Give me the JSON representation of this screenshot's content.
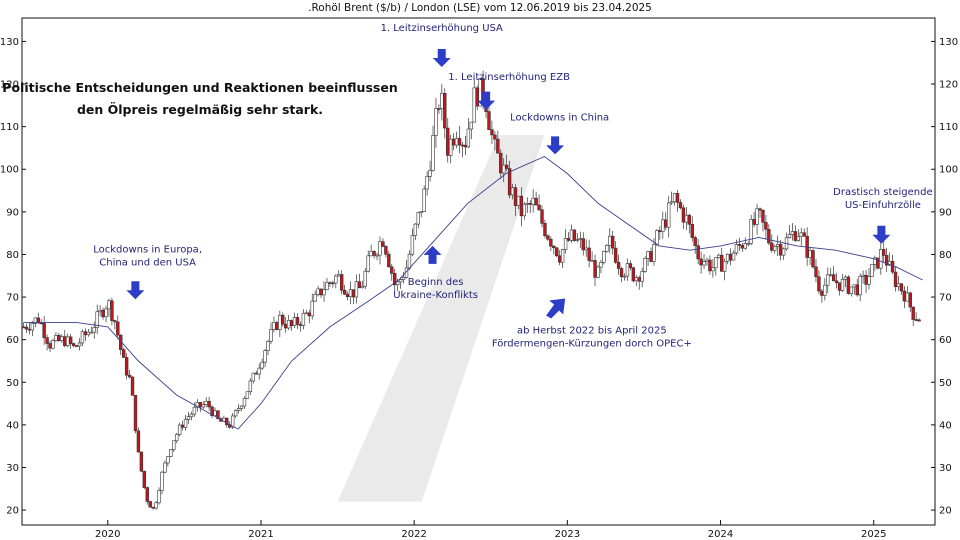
{
  "chart_data": {
    "type": "candlestick",
    "title": ".Rohöl Brent ($/b) / London (LSE) vom 12.06.2019 bis 23.04.2025",
    "note_lines": [
      "Politische Entscheidungen und Reaktionen beeinflussen",
      "den Ölpreis regelmäßig sehr stark."
    ],
    "y_ticks": [
      20,
      30,
      40,
      50,
      60,
      70,
      80,
      90,
      100,
      110,
      120,
      130
    ],
    "x_ticks": [
      {
        "label": "2020",
        "t": 2020.0
      },
      {
        "label": "2021",
        "t": 2021.0
      },
      {
        "label": "2022",
        "t": 2022.0
      },
      {
        "label": "2023",
        "t": 2023.0
      },
      {
        "label": "2024",
        "t": 2024.0
      },
      {
        "label": "2025",
        "t": 2025.0
      }
    ],
    "xlim": [
      2019.44,
      2025.4
    ],
    "ylim": [
      16.5,
      135.5
    ],
    "grid": false,
    "price_path": [
      [
        2019.45,
        63
      ],
      [
        2019.55,
        65
      ],
      [
        2019.62,
        59
      ],
      [
        2019.72,
        60
      ],
      [
        2019.78,
        58
      ],
      [
        2019.85,
        61
      ],
      [
        2019.9,
        63
      ],
      [
        2019.95,
        66
      ],
      [
        2020.0,
        69
      ],
      [
        2020.05,
        64
      ],
      [
        2020.1,
        55
      ],
      [
        2020.15,
        50
      ],
      [
        2020.2,
        33
      ],
      [
        2020.25,
        23
      ],
      [
        2020.3,
        20
      ],
      [
        2020.35,
        28
      ],
      [
        2020.42,
        36
      ],
      [
        2020.5,
        41
      ],
      [
        2020.58,
        44
      ],
      [
        2020.65,
        45
      ],
      [
        2020.72,
        41
      ],
      [
        2020.8,
        40
      ],
      [
        2020.88,
        46
      ],
      [
        2020.95,
        51
      ],
      [
        2021.05,
        60
      ],
      [
        2021.12,
        65
      ],
      [
        2021.2,
        63
      ],
      [
        2021.3,
        66
      ],
      [
        2021.4,
        72
      ],
      [
        2021.5,
        75
      ],
      [
        2021.58,
        71
      ],
      [
        2021.65,
        72
      ],
      [
        2021.72,
        80
      ],
      [
        2021.8,
        84
      ],
      [
        2021.88,
        72
      ],
      [
        2021.95,
        77
      ],
      [
        2022.0,
        85
      ],
      [
        2022.06,
        93
      ],
      [
        2022.12,
        106
      ],
      [
        2022.17,
        118
      ],
      [
        2022.22,
        105
      ],
      [
        2022.28,
        110
      ],
      [
        2022.33,
        106
      ],
      [
        2022.4,
        118
      ],
      [
        2022.46,
        118
      ],
      [
        2022.52,
        105
      ],
      [
        2022.58,
        100
      ],
      [
        2022.63,
        95
      ],
      [
        2022.7,
        90
      ],
      [
        2022.78,
        92
      ],
      [
        2022.84,
        87
      ],
      [
        2022.9,
        83
      ],
      [
        2022.95,
        80
      ],
      [
        2023.02,
        84
      ],
      [
        2023.1,
        82
      ],
      [
        2023.2,
        75
      ],
      [
        2023.28,
        83
      ],
      [
        2023.35,
        77
      ],
      [
        2023.45,
        75
      ],
      [
        2023.52,
        78
      ],
      [
        2023.6,
        85
      ],
      [
        2023.7,
        93
      ],
      [
        2023.78,
        88
      ],
      [
        2023.85,
        80
      ],
      [
        2023.95,
        77
      ],
      [
        2024.05,
        79
      ],
      [
        2024.15,
        83
      ],
      [
        2024.25,
        89
      ],
      [
        2024.32,
        83
      ],
      [
        2024.4,
        82
      ],
      [
        2024.5,
        86
      ],
      [
        2024.58,
        80
      ],
      [
        2024.65,
        72
      ],
      [
        2024.72,
        74
      ],
      [
        2024.8,
        73
      ],
      [
        2024.88,
        72
      ],
      [
        2024.95,
        74
      ],
      [
        2025.02,
        78
      ],
      [
        2025.06,
        81
      ],
      [
        2025.12,
        75
      ],
      [
        2025.2,
        71
      ],
      [
        2025.26,
        66
      ],
      [
        2025.3,
        65
      ]
    ],
    "moving_average": [
      [
        2019.45,
        64
      ],
      [
        2019.8,
        64
      ],
      [
        2020.0,
        63
      ],
      [
        2020.2,
        55
      ],
      [
        2020.45,
        47
      ],
      [
        2020.7,
        42
      ],
      [
        2020.85,
        39
      ],
      [
        2021.0,
        45
      ],
      [
        2021.2,
        55
      ],
      [
        2021.45,
        63
      ],
      [
        2021.7,
        69
      ],
      [
        2021.9,
        74
      ],
      [
        2022.1,
        82
      ],
      [
        2022.35,
        92
      ],
      [
        2022.6,
        99
      ],
      [
        2022.85,
        103
      ],
      [
        2023.0,
        99
      ],
      [
        2023.2,
        92
      ],
      [
        2023.4,
        87
      ],
      [
        2023.6,
        82
      ],
      [
        2023.8,
        81
      ],
      [
        2024.0,
        82
      ],
      [
        2024.25,
        84
      ],
      [
        2024.5,
        82
      ],
      [
        2024.75,
        81
      ],
      [
        2025.0,
        79
      ],
      [
        2025.15,
        77
      ],
      [
        2025.32,
        74
      ]
    ],
    "annotations": [
      {
        "lines": [
          "1. Leitzinserhöhung USA"
        ],
        "t": 2022.18,
        "y": 132.5,
        "arrow": "down",
        "ax": 2022.18,
        "ay": 124
      },
      {
        "lines": [
          "1. Leitzinserhöhung EZB"
        ],
        "t": 2022.62,
        "y": 121,
        "arrow": "down",
        "ax": 2022.47,
        "ay": 114
      },
      {
        "lines": [
          "Lockdowns in China"
        ],
        "t": 2022.95,
        "y": 111.5,
        "arrow": "down",
        "ax": 2022.92,
        "ay": 103.5
      },
      {
        "lines": [
          "Lockdowns in Europa,",
          "China und den USA"
        ],
        "t": 2020.26,
        "y": 80.5,
        "arrow": "down",
        "ax": 2020.18,
        "ay": 69.5
      },
      {
        "lines": [
          "Beginn des",
          "Ukraine-Konflikts"
        ],
        "t": 2022.14,
        "y": 72.8,
        "arrow": "up",
        "ax": 2022.12,
        "ay": 82
      },
      {
        "lines": [
          "ab Herbst 2022 bis April 2025",
          "Fördermengen-Kürzungen dorch OPEC+"
        ],
        "t": 2023.16,
        "y": 61.5,
        "arrow": "upright",
        "ax": 2022.94,
        "ay": 68.5
      },
      {
        "lines": [
          "Drastisch steigende",
          "US-Einfuhrzölle"
        ],
        "t": 2025.06,
        "y": 94,
        "arrow": "down",
        "ax": 2025.05,
        "ay": 82.5
      }
    ],
    "colors": {
      "up": "#ffffff",
      "down": "#c0161d",
      "wick": "#333333",
      "ma": "#3a3f8f",
      "arrow": "#2c3dc8",
      "watermark": "#d8d8d8"
    }
  }
}
